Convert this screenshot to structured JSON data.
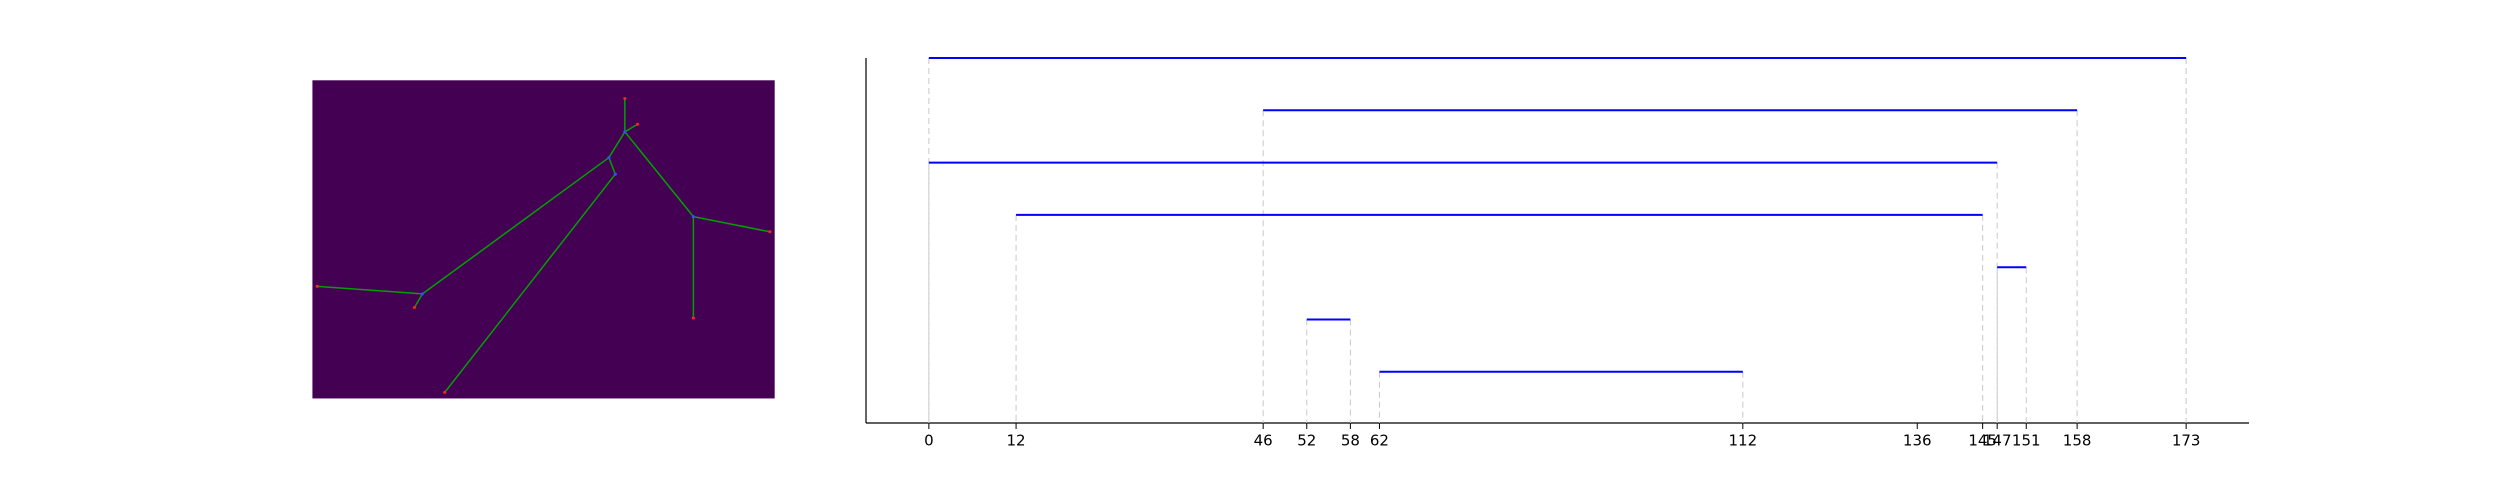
{
  "chart_data": {
    "type": "barcode",
    "bars": [
      {
        "start": 0,
        "end": 173
      },
      {
        "start": 46,
        "end": 158
      },
      {
        "start": 0,
        "end": 147
      },
      {
        "start": 12,
        "end": 145
      },
      {
        "start": 147,
        "end": 151
      },
      {
        "start": 52,
        "end": 58
      },
      {
        "start": 62,
        "end": 112
      }
    ],
    "color": "#0000ff",
    "xlim": [
      -8.65,
      181.65
    ],
    "xticks": [
      0,
      12,
      46,
      52,
      58,
      62,
      112,
      136,
      145,
      147,
      151,
      158,
      173
    ]
  }
}
